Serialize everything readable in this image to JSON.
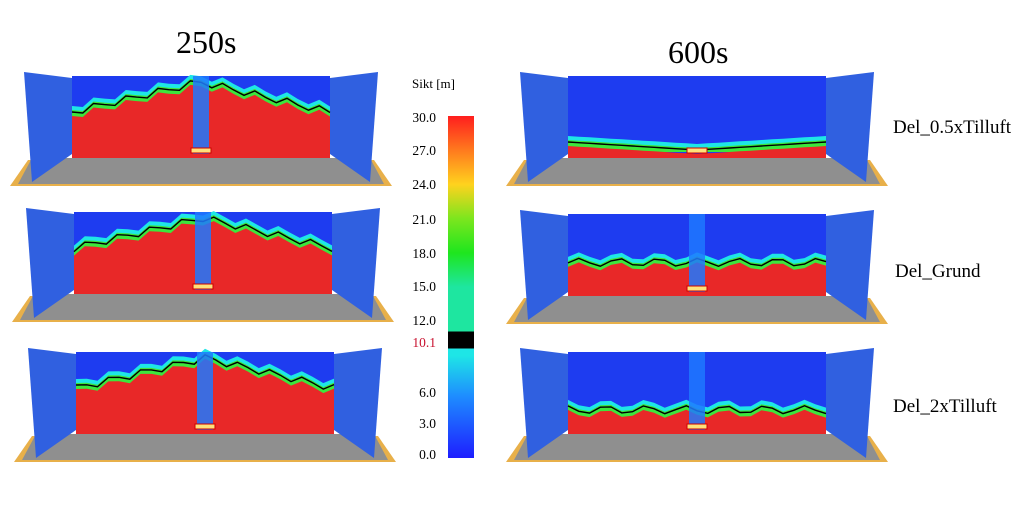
{
  "columns": [
    "250s",
    "600s"
  ],
  "rows": [
    "Del_0.5xTilluft",
    "Del_Grund",
    "Del_2xTilluft"
  ],
  "colorbar": {
    "title": "Sikt [m]",
    "ticks": [
      "30.0",
      "27.0",
      "24.0",
      "21.0",
      "18.0",
      "15.0",
      "12.0",
      "10.1",
      "6.0",
      "3.0",
      "0.0"
    ],
    "highlight_tick": "10.1",
    "highlight_color": "#c8102e",
    "colors": [
      "#ff1e1e",
      "#ff7a1e",
      "#ffd21e",
      "#7ce61e",
      "#1ee61e",
      "#1ee6a0",
      "#000000",
      "#1ee6e6",
      "#1e8cff",
      "#1e1eff"
    ]
  },
  "panels": [
    {
      "time": "250s",
      "case": "Del_0.5xTilluft",
      "smoke": "high"
    },
    {
      "time": "600s",
      "case": "Del_0.5xTilluft",
      "smoke": "clear"
    },
    {
      "time": "250s",
      "case": "Del_Grund",
      "smoke": "high"
    },
    {
      "time": "600s",
      "case": "Del_Grund",
      "smoke": "mid"
    },
    {
      "time": "250s",
      "case": "Del_2xTilluft",
      "smoke": "high"
    },
    {
      "time": "600s",
      "case": "Del_2xTilluft",
      "smoke": "low"
    }
  ]
}
